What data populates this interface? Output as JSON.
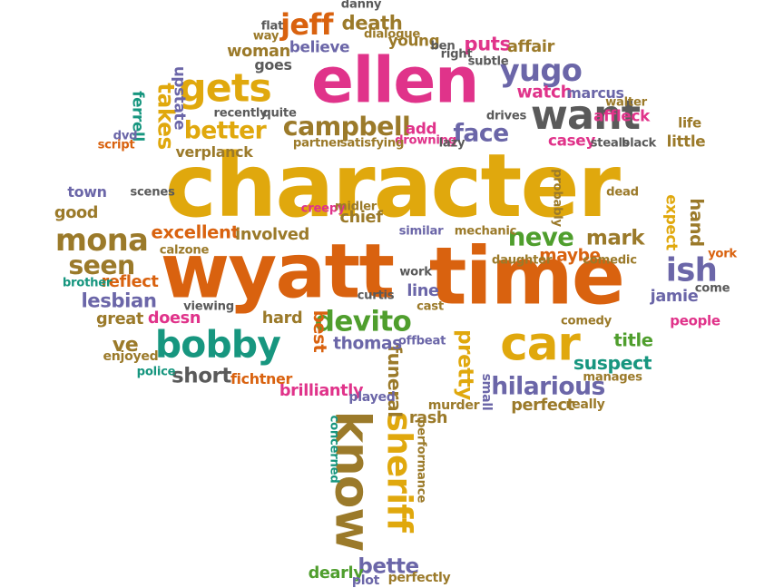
{
  "colors": {
    "orange": "#d9620f",
    "gold": "#e0a80d",
    "pink": "#e0338a",
    "purple": "#6b66a8",
    "green": "#4f9e2d",
    "teal": "#17967f",
    "gray": "#5a5a5a",
    "olive": "#9b7a2a"
  },
  "words": [
    {
      "text": "character",
      "weight": 100,
      "color": "gold",
      "rotated": false
    },
    {
      "text": "time",
      "weight": 90,
      "color": "orange",
      "rotated": false
    },
    {
      "text": "wyatt",
      "weight": 85,
      "color": "orange",
      "rotated": false
    },
    {
      "text": "ellen",
      "weight": 70,
      "color": "pink",
      "rotated": false
    },
    {
      "text": "know",
      "weight": 52,
      "color": "olive",
      "rotated": true
    },
    {
      "text": "car",
      "weight": 50,
      "color": "gold",
      "rotated": false
    },
    {
      "text": "want",
      "weight": 42,
      "color": "gray",
      "rotated": false
    },
    {
      "text": "gets",
      "weight": 40,
      "color": "gold",
      "rotated": false
    },
    {
      "text": "bobby",
      "weight": 38,
      "color": "teal",
      "rotated": false
    },
    {
      "text": "sheriff",
      "weight": 34,
      "color": "gold",
      "rotated": true
    },
    {
      "text": "ish",
      "weight": 32,
      "color": "purple",
      "rotated": false
    },
    {
      "text": "yugo",
      "weight": 30,
      "color": "purple",
      "rotated": false
    },
    {
      "text": "mona",
      "weight": 30,
      "color": "olive",
      "rotated": false
    },
    {
      "text": "jeff",
      "weight": 28,
      "color": "orange",
      "rotated": false
    },
    {
      "text": "devito",
      "weight": 27,
      "color": "green",
      "rotated": false
    },
    {
      "text": "campbell",
      "weight": 24,
      "color": "olive",
      "rotated": false
    },
    {
      "text": "seen",
      "weight": 24,
      "color": "olive",
      "rotated": false
    },
    {
      "text": "neve",
      "weight": 23,
      "color": "green",
      "rotated": false
    },
    {
      "text": "hilarious",
      "weight": 22,
      "color": "purple",
      "rotated": false
    },
    {
      "text": "face",
      "weight": 22,
      "color": "purple",
      "rotated": false
    },
    {
      "text": "better",
      "weight": 22,
      "color": "gold",
      "rotated": false
    },
    {
      "text": "takes",
      "weight": 20,
      "color": "gold",
      "rotated": true
    },
    {
      "text": "pretty",
      "weight": 18,
      "color": "gold",
      "rotated": true
    },
    {
      "text": "bette",
      "weight": 18,
      "color": "purple",
      "rotated": false
    },
    {
      "text": "mark",
      "weight": 18,
      "color": "olive",
      "rotated": false
    },
    {
      "text": "short",
      "weight": 18,
      "color": "gray",
      "rotated": false
    },
    {
      "text": "ve",
      "weight": 17,
      "color": "olive",
      "rotated": false
    },
    {
      "text": "lesbian",
      "weight": 16,
      "color": "purple",
      "rotated": false
    },
    {
      "text": "death",
      "weight": 16,
      "color": "olive",
      "rotated": false
    },
    {
      "text": "puts",
      "weight": 16,
      "color": "pink",
      "rotated": false
    },
    {
      "text": "funeral",
      "weight": 15,
      "color": "olive",
      "rotated": true
    },
    {
      "text": "suspect",
      "weight": 15,
      "color": "teal",
      "rotated": false
    },
    {
      "text": "excellent",
      "weight": 14,
      "color": "orange",
      "rotated": false
    },
    {
      "text": "title",
      "weight": 14,
      "color": "green",
      "rotated": false
    },
    {
      "text": "hand",
      "weight": 14,
      "color": "olive",
      "rotated": true
    },
    {
      "text": "best",
      "weight": 14,
      "color": "orange",
      "rotated": true
    },
    {
      "text": "thomas",
      "weight": 13,
      "color": "purple",
      "rotated": false
    },
    {
      "text": "watch",
      "weight": 13,
      "color": "pink",
      "rotated": false
    },
    {
      "text": "maybe",
      "weight": 13,
      "color": "orange",
      "rotated": false
    },
    {
      "text": "jamie",
      "weight": 12,
      "color": "purple",
      "rotated": false
    },
    {
      "text": "good",
      "weight": 12,
      "color": "olive",
      "rotated": false
    },
    {
      "text": "reflect",
      "weight": 12,
      "color": "orange",
      "rotated": false
    },
    {
      "text": "hard",
      "weight": 12,
      "color": "olive",
      "rotated": false
    },
    {
      "text": "affair",
      "weight": 12,
      "color": "olive",
      "rotated": false
    },
    {
      "text": "doesn",
      "weight": 12,
      "color": "pink",
      "rotated": false
    },
    {
      "text": "great",
      "weight": 12,
      "color": "olive",
      "rotated": false
    },
    {
      "text": "involved",
      "weight": 12,
      "color": "olive",
      "rotated": false
    },
    {
      "text": "chief",
      "weight": 12,
      "color": "olive",
      "rotated": false
    },
    {
      "text": "line",
      "weight": 12,
      "color": "purple",
      "rotated": false
    },
    {
      "text": "perfect",
      "weight": 12,
      "color": "olive",
      "rotated": false
    },
    {
      "text": "brilliantly",
      "weight": 12,
      "color": "pink",
      "rotated": false
    },
    {
      "text": "rash",
      "weight": 12,
      "color": "olive",
      "rotated": false
    },
    {
      "text": "dearly",
      "weight": 12,
      "color": "green",
      "rotated": false
    },
    {
      "text": "woman",
      "weight": 12,
      "color": "olive",
      "rotated": false
    },
    {
      "text": "young",
      "weight": 11,
      "color": "olive",
      "rotated": false
    },
    {
      "text": "ferrell",
      "weight": 11,
      "color": "teal",
      "rotated": true
    },
    {
      "text": "upstate",
      "weight": 11,
      "color": "purple",
      "rotated": true
    },
    {
      "text": "expect",
      "weight": 11,
      "color": "gold",
      "rotated": true
    },
    {
      "text": "affleck",
      "weight": 11,
      "color": "pink",
      "rotated": false
    },
    {
      "text": "add",
      "weight": 11,
      "color": "pink",
      "rotated": false
    },
    {
      "text": "believe",
      "weight": 11,
      "color": "purple",
      "rotated": false
    },
    {
      "text": "casey",
      "weight": 11,
      "color": "pink",
      "rotated": false
    },
    {
      "text": "little",
      "weight": 11,
      "color": "olive",
      "rotated": false
    },
    {
      "text": "fichtner",
      "weight": 10,
      "color": "orange",
      "rotated": false
    },
    {
      "text": "goes",
      "weight": 10,
      "color": "gray",
      "rotated": false
    },
    {
      "text": "verplanck",
      "weight": 10,
      "color": "olive",
      "rotated": false
    },
    {
      "text": "marcus",
      "weight": 10,
      "color": "purple",
      "rotated": false
    },
    {
      "text": "town",
      "weight": 10,
      "color": "purple",
      "rotated": false
    },
    {
      "text": "people",
      "weight": 9,
      "color": "pink",
      "rotated": false
    },
    {
      "text": "life",
      "weight": 9,
      "color": "olive",
      "rotated": false
    },
    {
      "text": "enjoyed",
      "weight": 8,
      "color": "olive",
      "rotated": false
    },
    {
      "text": "played",
      "weight": 8,
      "color": "purple",
      "rotated": false
    },
    {
      "text": "murder",
      "weight": 8,
      "color": "olive",
      "rotated": false
    },
    {
      "text": "small",
      "weight": 8,
      "color": "purple",
      "rotated": true
    },
    {
      "text": "really",
      "weight": 8,
      "color": "olive",
      "rotated": false
    },
    {
      "text": "plot",
      "weight": 8,
      "color": "purple",
      "rotated": false
    },
    {
      "text": "perfectly",
      "weight": 8,
      "color": "olive",
      "rotated": false
    },
    {
      "text": "concerned",
      "weight": 7,
      "color": "teal",
      "rotated": true
    },
    {
      "text": "performance",
      "weight": 7,
      "color": "olive",
      "rotated": true
    },
    {
      "text": "viewing",
      "weight": 7,
      "color": "gray",
      "rotated": false
    },
    {
      "text": "curtis",
      "weight": 7,
      "color": "gray",
      "rotated": false
    },
    {
      "text": "cast",
      "weight": 7,
      "color": "olive",
      "rotated": false
    },
    {
      "text": "offbeat",
      "weight": 7,
      "color": "purple",
      "rotated": false
    },
    {
      "text": "work",
      "weight": 7,
      "color": "gray",
      "rotated": false
    },
    {
      "text": "daughter",
      "weight": 7,
      "color": "olive",
      "rotated": false
    },
    {
      "text": "comedic",
      "weight": 7,
      "color": "olive",
      "rotated": false
    },
    {
      "text": "comedy",
      "weight": 7,
      "color": "olive",
      "rotated": false
    },
    {
      "text": "manages",
      "weight": 7,
      "color": "olive",
      "rotated": false
    },
    {
      "text": "police",
      "weight": 7,
      "color": "teal",
      "rotated": false
    },
    {
      "text": "brother",
      "weight": 7,
      "color": "teal",
      "rotated": false
    },
    {
      "text": "calzone",
      "weight": 7,
      "color": "olive",
      "rotated": false
    },
    {
      "text": "creepy",
      "weight": 7,
      "color": "pink",
      "rotated": false
    },
    {
      "text": "midler",
      "weight": 7,
      "color": "olive",
      "rotated": false
    },
    {
      "text": "similar",
      "weight": 7,
      "color": "purple",
      "rotated": false
    },
    {
      "text": "mechanic",
      "weight": 7,
      "color": "olive",
      "rotated": false
    },
    {
      "text": "york",
      "weight": 7,
      "color": "orange",
      "rotated": false
    },
    {
      "text": "come",
      "weight": 7,
      "color": "gray",
      "rotated": false
    },
    {
      "text": "dead",
      "weight": 7,
      "color": "olive",
      "rotated": false
    },
    {
      "text": "probably",
      "weight": 7,
      "color": "olive",
      "rotated": true
    },
    {
      "text": "steals",
      "weight": 7,
      "color": "gray",
      "rotated": false
    },
    {
      "text": "black",
      "weight": 7,
      "color": "gray",
      "rotated": false
    },
    {
      "text": "drives",
      "weight": 7,
      "color": "gray",
      "rotated": false
    },
    {
      "text": "drowning",
      "weight": 7,
      "color": "pink",
      "rotated": false
    },
    {
      "text": "lazy",
      "weight": 7,
      "color": "gray",
      "rotated": false
    },
    {
      "text": "satisfying",
      "weight": 7,
      "color": "olive",
      "rotated": false
    },
    {
      "text": "partner",
      "weight": 7,
      "color": "olive",
      "rotated": false
    },
    {
      "text": "recently",
      "weight": 7,
      "color": "gray",
      "rotated": false
    },
    {
      "text": "quite",
      "weight": 7,
      "color": "gray",
      "rotated": false
    },
    {
      "text": "dvd",
      "weight": 7,
      "color": "purple",
      "rotated": false
    },
    {
      "text": "script",
      "weight": 7,
      "color": "orange",
      "rotated": false
    },
    {
      "text": "scenes",
      "weight": 7,
      "color": "gray",
      "rotated": false
    },
    {
      "text": "walter",
      "weight": 7,
      "color": "olive",
      "rotated": false
    },
    {
      "text": "subtle",
      "weight": 7,
      "color": "gray",
      "rotated": false
    },
    {
      "text": "right",
      "weight": 7,
      "color": "gray",
      "rotated": false
    },
    {
      "text": "ben",
      "weight": 7,
      "color": "gray",
      "rotated": false
    },
    {
      "text": "dialogue",
      "weight": 7,
      "color": "olive",
      "rotated": false
    },
    {
      "text": "danny",
      "weight": 7,
      "color": "gray",
      "rotated": false
    },
    {
      "text": "flat",
      "weight": 7,
      "color": "gray",
      "rotated": false
    },
    {
      "text": "way",
      "weight": 7,
      "color": "olive",
      "rotated": false
    }
  ]
}
